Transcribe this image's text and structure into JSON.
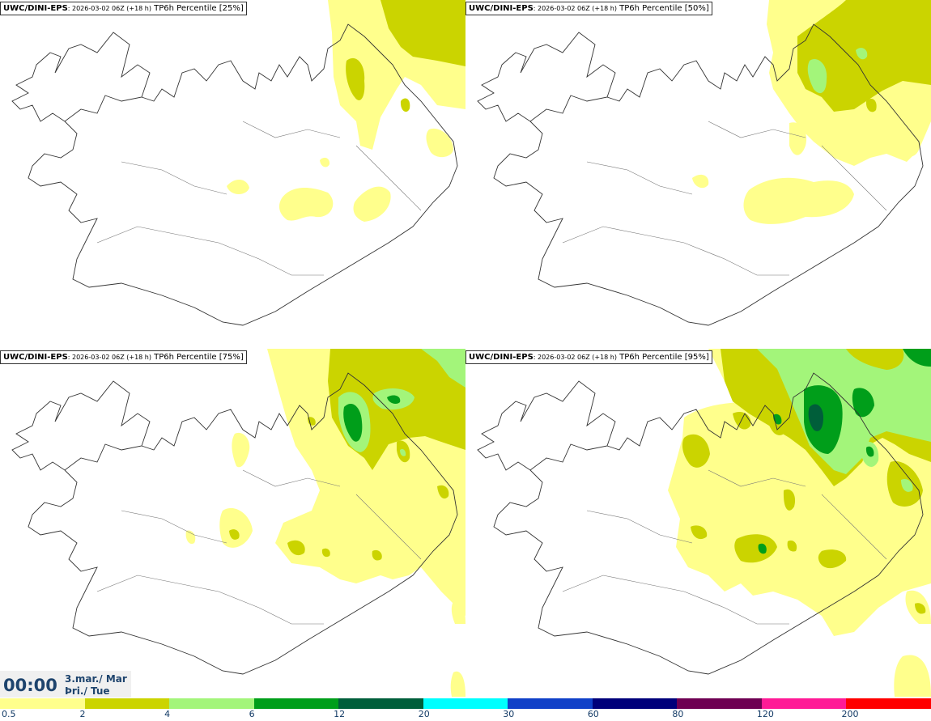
{
  "panels": [
    {
      "model": "UWC/DINI-EPS",
      "run": ": 2026-03-02 06Z (+18 h)",
      "field": " TP6h Percentile [25%]"
    },
    {
      "model": "UWC/DINI-EPS",
      "run": ": 2026-03-02 06Z (+18 h)",
      "field": " TP6h Percentile [50%]"
    },
    {
      "model": "UWC/DINI-EPS",
      "run": ": 2026-03-02 06Z (+18 h)",
      "field": " TP6h Percentile [75%]"
    },
    {
      "model": "UWC/DINI-EPS",
      "run": ": 2026-03-02 06Z (+18 h)",
      "field": " TP6h Percentile [95%]"
    }
  ],
  "time": {
    "clock": "00:00",
    "date": "3.mar./ Mar",
    "weekday": "Þri./ Tue"
  },
  "colorbar": {
    "ticks": [
      "0.5",
      "2",
      "4",
      "6",
      "12",
      "20",
      "30",
      "60",
      "80",
      "120",
      "200"
    ],
    "colors": [
      "#ffff8c",
      "#cbd400",
      "#a3f57a",
      "#009e1a",
      "#005e3a",
      "#00ffff",
      "#1040c8",
      "#00007a",
      "#6e0052",
      "#ff1a96",
      "#ff0000"
    ]
  },
  "colors": {
    "light": "#ffff8c",
    "olive": "#cbd400",
    "lightgreen": "#a3f57a",
    "green": "#009e1a",
    "darkgreen": "#005e3a"
  }
}
